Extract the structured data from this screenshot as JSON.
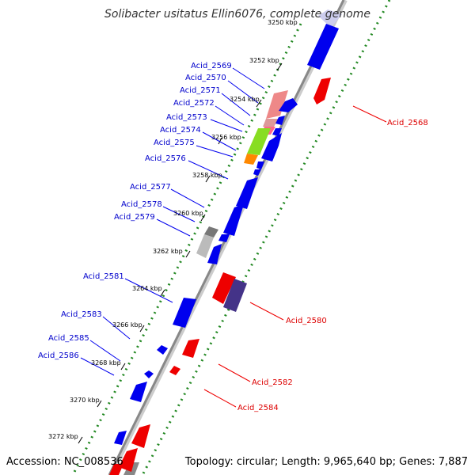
{
  "title": "Solibacter usitatus Ellin6076, complete genome",
  "footer": {
    "accession": "Accession: NC_008536",
    "summary": "Topology: circular; Length: 9,965,640 bp; Genes: 7,887"
  },
  "colors": {
    "forward_gene": "#0000ee",
    "reverse_gene": "#ee0000",
    "forward_label": "#0000cc",
    "reverse_label": "#dd0000",
    "backbone": "#888888",
    "tick_dots": "#228822"
  },
  "kbp_markers": [
    "3250 kbp",
    "3252 kbp",
    "3254 kbp",
    "3256 kbp",
    "3258 kbp",
    "3260 kbp",
    "3262 kbp",
    "3264 kbp",
    "3266 kbp",
    "3268 kbp",
    "3270 kbp",
    "3272 kbp"
  ],
  "forward_labels": [
    "Acid_2569",
    "Acid_2570",
    "Acid_2571",
    "Acid_2572",
    "Acid_2573",
    "Acid_2574",
    "Acid_2575",
    "Acid_2576",
    "Acid_2577",
    "Acid_2578",
    "Acid_2579",
    "Acid_2581",
    "Acid_2583",
    "Acid_2585",
    "Acid_2586"
  ],
  "reverse_labels": [
    "Acid_2568",
    "Acid_2580",
    "Acid_2582",
    "Acid_2584"
  ]
}
